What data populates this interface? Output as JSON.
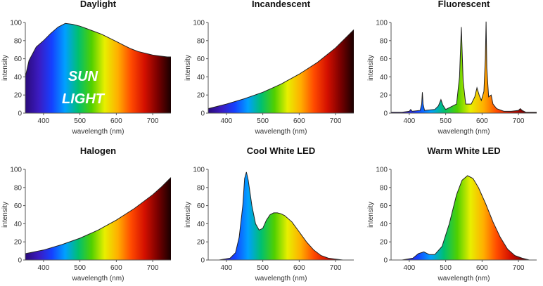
{
  "colors": {
    "spectrum": [
      "#2a0a7a",
      "#3b1bc0",
      "#1540ff",
      "#00a0ff",
      "#00c070",
      "#50d000",
      "#e8ef00",
      "#ffae00",
      "#ff4a00",
      "#d41000",
      "#7a0000",
      "#180000"
    ],
    "axis": "#555555"
  },
  "chart_data": [
    {
      "type": "area",
      "title": "Daylight",
      "xlabel": "wavelength (nm)",
      "ylabel": "intensity",
      "xlim": [
        350,
        750
      ],
      "ylim": [
        0,
        100
      ],
      "xticks": [
        400,
        500,
        600,
        700
      ],
      "yticks": [
        0,
        20,
        40,
        60,
        80,
        100
      ],
      "overlay_text": [
        "SUN",
        "LIGHT"
      ],
      "x": [
        350,
        360,
        380,
        400,
        420,
        440,
        460,
        480,
        500,
        520,
        540,
        560,
        580,
        600,
        620,
        640,
        660,
        680,
        700,
        720,
        740,
        750
      ],
      "values": [
        40,
        58,
        73,
        80,
        88,
        95,
        99,
        98,
        96,
        93,
        90,
        87,
        83,
        79,
        75,
        71,
        68,
        66,
        64,
        63,
        62,
        62
      ]
    },
    {
      "type": "area",
      "title": "Incandescent",
      "xlabel": "wavelength (nm)",
      "ylabel": "intensity",
      "xlim": [
        350,
        750
      ],
      "ylim": [
        0,
        100
      ],
      "xticks": [
        400,
        500,
        600,
        700
      ],
      "yticks": [
        0,
        20,
        40,
        60,
        80,
        100
      ],
      "x": [
        350,
        400,
        450,
        500,
        550,
        600,
        650,
        700,
        725,
        750
      ],
      "values": [
        5,
        10,
        16,
        23,
        32,
        43,
        56,
        72,
        82,
        92
      ]
    },
    {
      "type": "area",
      "title": "Fluorescent",
      "xlabel": "wavelength (nm)",
      "ylabel": "intensity",
      "xlim": [
        350,
        750
      ],
      "ylim": [
        0,
        100
      ],
      "xticks": [
        400,
        500,
        600,
        700
      ],
      "yticks": [
        0,
        20,
        40,
        60,
        80,
        100
      ],
      "x": [
        350,
        380,
        400,
        404,
        408,
        430,
        434,
        436,
        438,
        442,
        470,
        480,
        487,
        492,
        500,
        530,
        538,
        543,
        548,
        555,
        570,
        580,
        586,
        592,
        598,
        605,
        609,
        611,
        613,
        618,
        625,
        630,
        640,
        660,
        680,
        700,
        705,
        710,
        720,
        750
      ],
      "values": [
        1,
        1,
        2,
        4,
        2,
        3,
        10,
        23,
        10,
        3,
        4,
        8,
        15,
        9,
        4,
        10,
        40,
        95,
        35,
        10,
        10,
        18,
        28,
        20,
        14,
        24,
        60,
        101,
        50,
        18,
        20,
        10,
        5,
        2,
        2,
        3,
        5,
        3,
        1,
        1
      ]
    },
    {
      "type": "area",
      "title": "Halogen",
      "xlabel": "wavelength (nm)",
      "ylabel": "intensity",
      "xlim": [
        350,
        750
      ],
      "ylim": [
        0,
        100
      ],
      "xticks": [
        400,
        500,
        600,
        700
      ],
      "yticks": [
        0,
        20,
        40,
        60,
        80,
        100
      ],
      "x": [
        350,
        400,
        450,
        500,
        550,
        600,
        650,
        700,
        725,
        750
      ],
      "values": [
        7,
        11,
        17,
        24,
        33,
        44,
        57,
        72,
        81,
        91
      ]
    },
    {
      "type": "area",
      "title": "Cool White LED",
      "xlabel": "wavelength (nm)",
      "ylabel": "intensity",
      "xlim": [
        350,
        750
      ],
      "ylim": [
        0,
        100
      ],
      "xticks": [
        400,
        500,
        600,
        700
      ],
      "yticks": [
        0,
        20,
        40,
        60,
        80,
        100
      ],
      "x": [
        380,
        410,
        425,
        435,
        445,
        450,
        455,
        460,
        470,
        480,
        490,
        500,
        510,
        520,
        530,
        540,
        550,
        560,
        580,
        600,
        620,
        640,
        660,
        680,
        700,
        720
      ],
      "values": [
        0,
        2,
        8,
        25,
        60,
        90,
        97,
        88,
        60,
        40,
        33,
        35,
        44,
        50,
        52,
        52,
        51,
        49,
        42,
        31,
        20,
        11,
        5,
        2,
        1,
        0
      ]
    },
    {
      "type": "area",
      "title": "Warm White LED",
      "xlabel": "wavelength (nm)",
      "ylabel": "intensity",
      "xlim": [
        350,
        750
      ],
      "ylim": [
        0,
        100
      ],
      "xticks": [
        400,
        500,
        600,
        700
      ],
      "yticks": [
        0,
        20,
        40,
        60,
        80,
        100
      ],
      "x": [
        380,
        410,
        425,
        440,
        455,
        470,
        490,
        510,
        530,
        545,
        560,
        575,
        590,
        610,
        630,
        650,
        670,
        690,
        710,
        730
      ],
      "values": [
        0,
        2,
        7,
        9,
        6,
        6,
        15,
        40,
        72,
        88,
        93,
        90,
        80,
        62,
        42,
        25,
        12,
        5,
        2,
        0
      ]
    }
  ]
}
